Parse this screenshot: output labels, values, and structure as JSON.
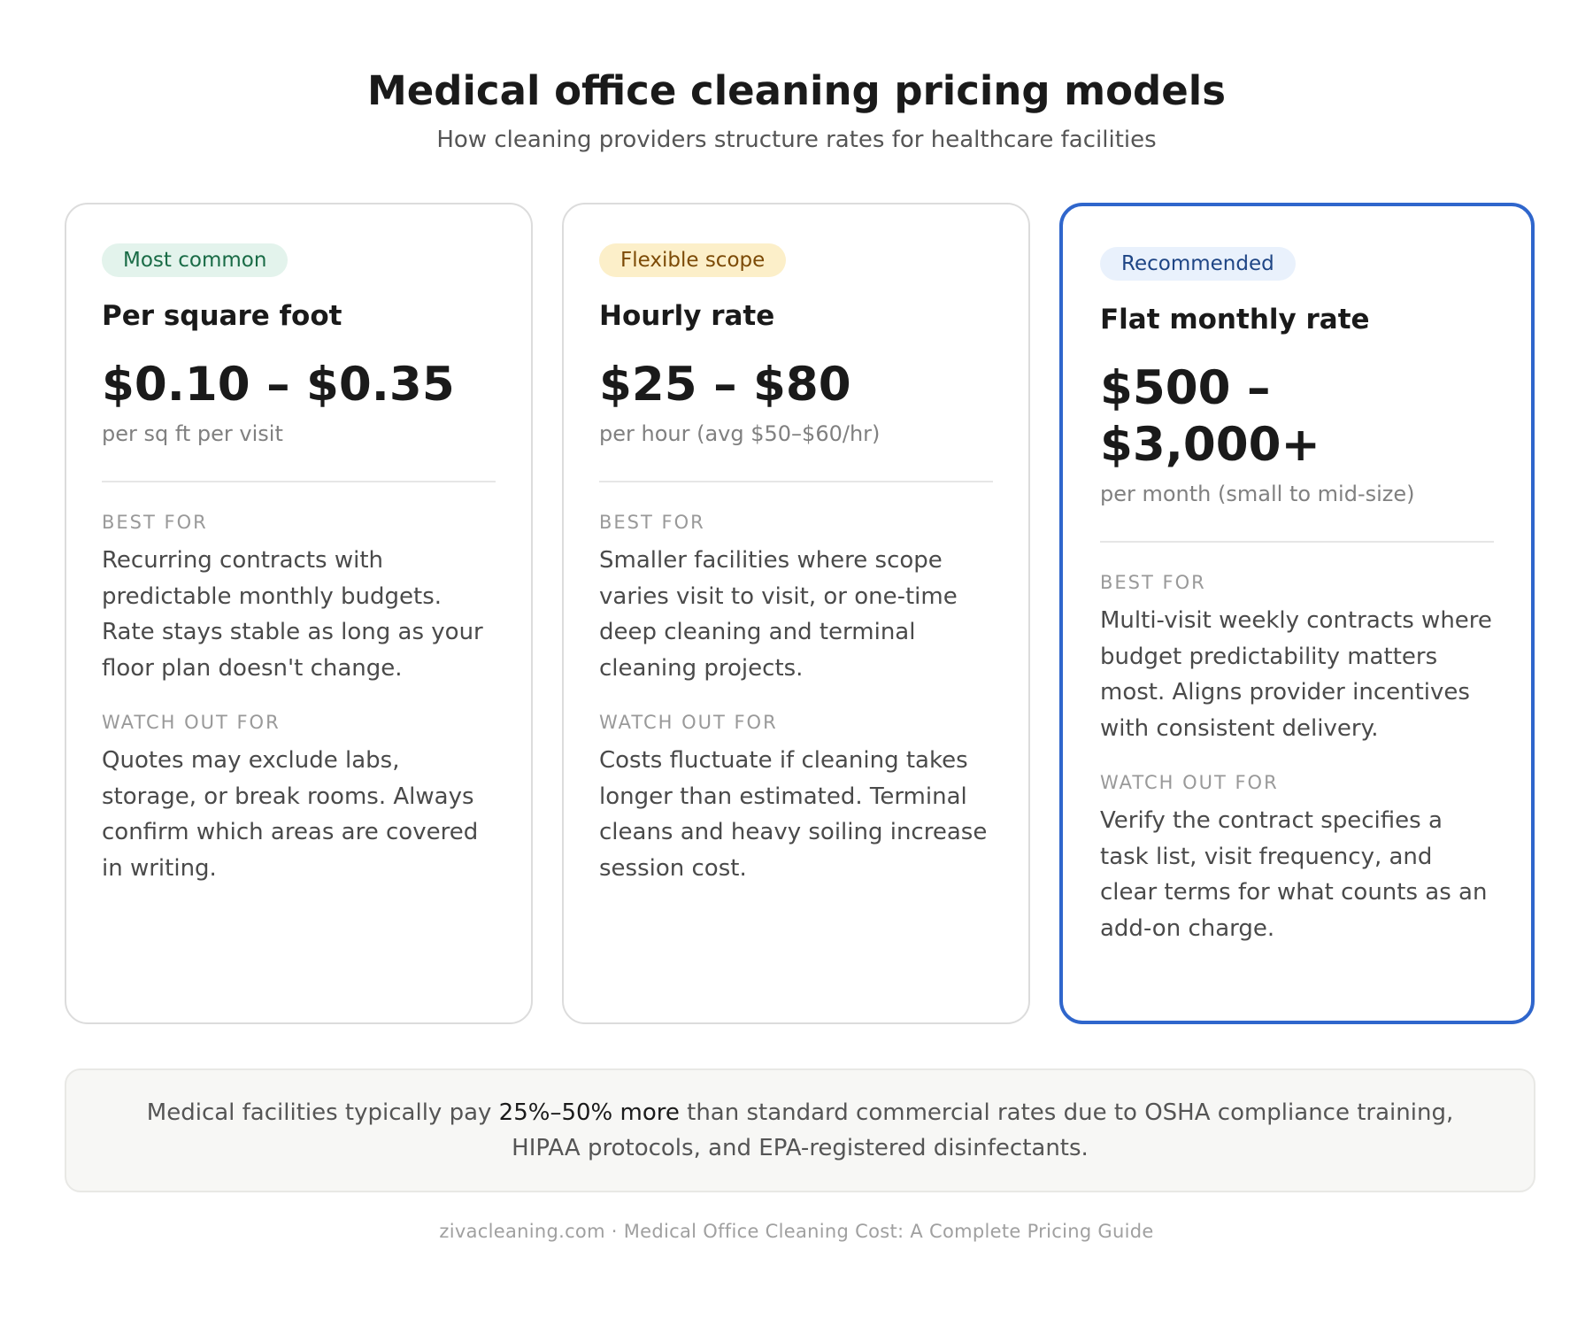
{
  "header": {
    "title": "Medical office cleaning pricing models",
    "subtitle": "How cleaning providers structure rates for healthcare facilities"
  },
  "cards": [
    {
      "badge": "Most common",
      "badge_color": "#196b46",
      "title": "Per square foot",
      "price": "$0.10 – $0.35",
      "price_note": "per sq ft per visit",
      "best_for_label": "BEST FOR",
      "best_for_text": "Recurring contracts with predictable monthly budgets. Rate stays stable as long as your floor plan doesn't change.",
      "watch_out_label": "WATCH OUT FOR",
      "watch_out_text": "Quotes may exclude labs, storage, or break rooms. Always confirm which areas are covered in writing."
    },
    {
      "badge": "Flexible scope",
      "badge_color": "#7c4a06",
      "title": "Hourly rate",
      "price": "$25 – $80",
      "price_note": "per hour (avg $50–$60/hr)",
      "best_for_label": "BEST FOR",
      "best_for_text": "Smaller facilities where scope varies visit to visit, or one-time deep cleaning and terminal cleaning projects.",
      "watch_out_label": "WATCH OUT FOR",
      "watch_out_text": "Costs fluctuate if cleaning takes longer than estimated. Terminal cleans and heavy soiling increase session cost."
    },
    {
      "badge": "Recommended",
      "badge_color": "#1e4585",
      "title": "Flat monthly rate",
      "price": "$500 – $3,000+",
      "price_note": "per month (small to mid-size)",
      "best_for_label": "BEST FOR",
      "best_for_text": "Multi-visit weekly contracts where budget predictability matters most. Aligns provider incentives with consistent delivery.",
      "watch_out_label": "WATCH OUT FOR",
      "watch_out_text": "Verify the contract specifies a task list, visit frequency, and clear terms for what counts as an add-on charge.",
      "highlight_border_color": "#2f66cc"
    }
  ],
  "note": {
    "prefix": "Medical facilities typically pay ",
    "highlight": "25%–50% more",
    "suffix": " than standard commercial rates due to OSHA compliance training, HIPAA protocols, and EPA-registered disinfectants."
  },
  "footer": "zivacleaning.com · Medical Office Cleaning Cost: A Complete Pricing Guide"
}
